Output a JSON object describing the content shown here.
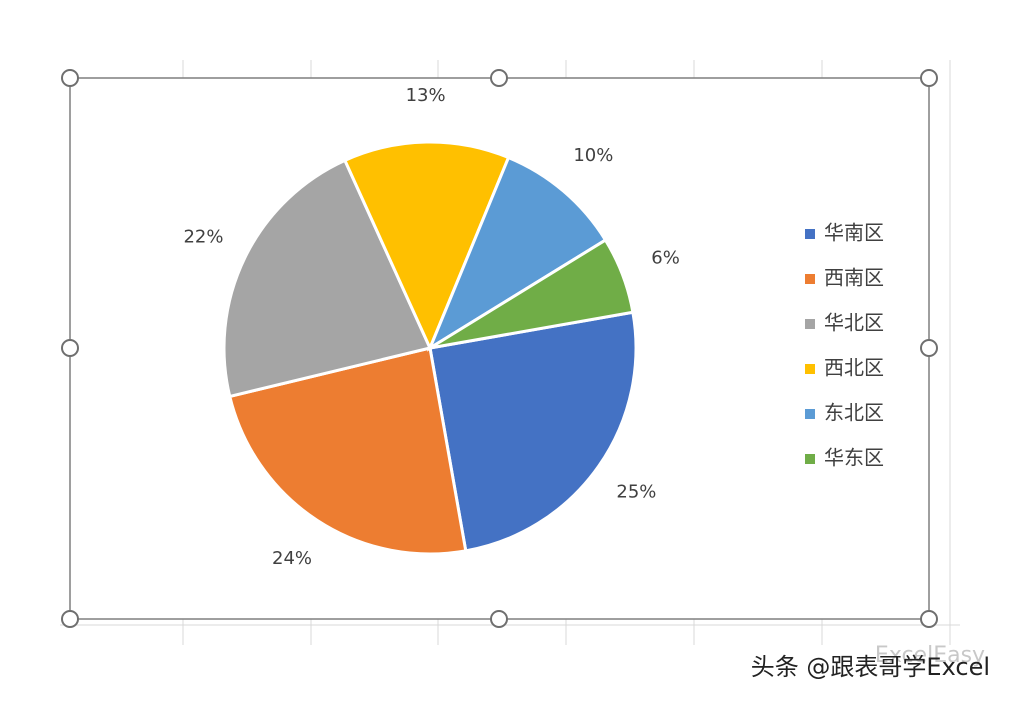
{
  "chart_data": {
    "type": "pie",
    "categories": [
      "华南区",
      "西南区",
      "华北区",
      "西北区",
      "东北区",
      "华东区"
    ],
    "values": [
      25,
      24,
      22,
      13,
      10,
      6
    ],
    "value_labels": [
      "25%",
      "24%",
      "22%",
      "13%",
      "10%",
      "6%"
    ],
    "colors": [
      "#4472c4",
      "#ed7d31",
      "#a5a5a5",
      "#ffc000",
      "#5b9bd5",
      "#70ad47"
    ],
    "legend": "right"
  },
  "watermark": {
    "text": "头条 @跟表哥学Excel",
    "faint": "ExcelEasy"
  }
}
